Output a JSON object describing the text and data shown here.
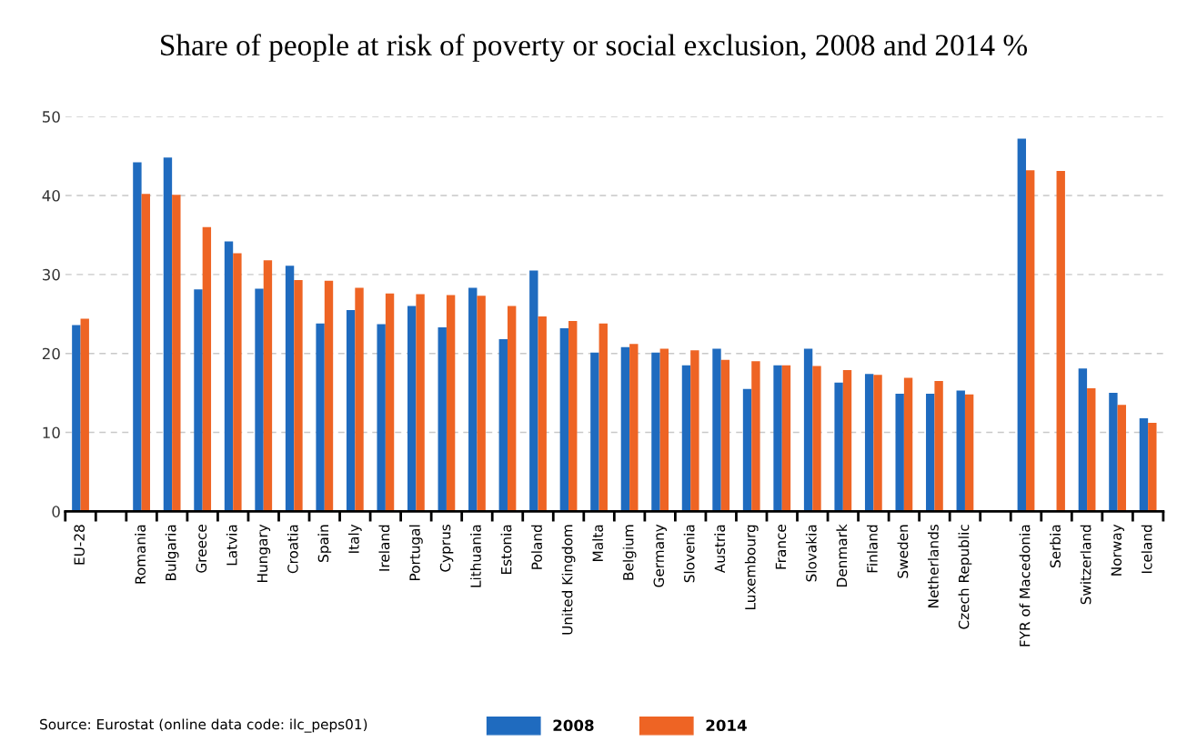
{
  "chart_data": {
    "type": "bar",
    "title": "Share of people at risk of poverty or social exclusion, 2008 and 2014 %",
    "categories": [
      "EU-28",
      null,
      "Romania",
      "Bulgaria",
      "Greece",
      "Latvia",
      "Hungary",
      "Croatia",
      "Spain",
      "Italy",
      "Ireland",
      "Portugal",
      "Cyprus",
      "Lithuania",
      "Estonia",
      "Poland",
      "United Kingdom",
      "Malta",
      "Belgium",
      "Germany",
      "Slovenia",
      "Austria",
      "Luxembourg",
      "France",
      "Slovakia",
      "Denmark",
      "Finland",
      "Sweden",
      "Netherlands",
      "Czech Republic",
      null,
      "FYR of Macedonia",
      "Serbia",
      "Switzerland",
      "Norway",
      "Iceland"
    ],
    "series": [
      {
        "name": "2008",
        "color": "#1f6bbf",
        "values": [
          23.6,
          null,
          44.2,
          44.8,
          28.1,
          34.2,
          28.2,
          31.1,
          23.8,
          25.5,
          23.7,
          26.0,
          23.3,
          28.3,
          21.8,
          30.5,
          23.2,
          20.1,
          20.8,
          20.1,
          18.5,
          20.6,
          15.5,
          18.5,
          20.6,
          16.3,
          17.4,
          14.9,
          14.9,
          15.3,
          null,
          47.2,
          null,
          18.1,
          15.0,
          11.8
        ]
      },
      {
        "name": "2014",
        "color": "#ee6424",
        "values": [
          24.4,
          null,
          40.2,
          40.1,
          36.0,
          32.7,
          31.8,
          29.3,
          29.2,
          28.3,
          27.6,
          27.5,
          27.4,
          27.3,
          26.0,
          24.7,
          24.1,
          23.8,
          21.2,
          20.6,
          20.4,
          19.2,
          19.0,
          18.5,
          18.4,
          17.9,
          17.3,
          16.9,
          16.5,
          14.8,
          null,
          43.2,
          43.1,
          15.6,
          13.5,
          11.2
        ]
      }
    ],
    "ylim": [
      0,
      50
    ],
    "yticks": [
      0,
      10,
      20,
      30,
      40,
      50
    ],
    "grid": "y",
    "legend": "bottom",
    "annotations": [
      "Source: Eurostat (online data code: ilc_peps01)"
    ]
  }
}
